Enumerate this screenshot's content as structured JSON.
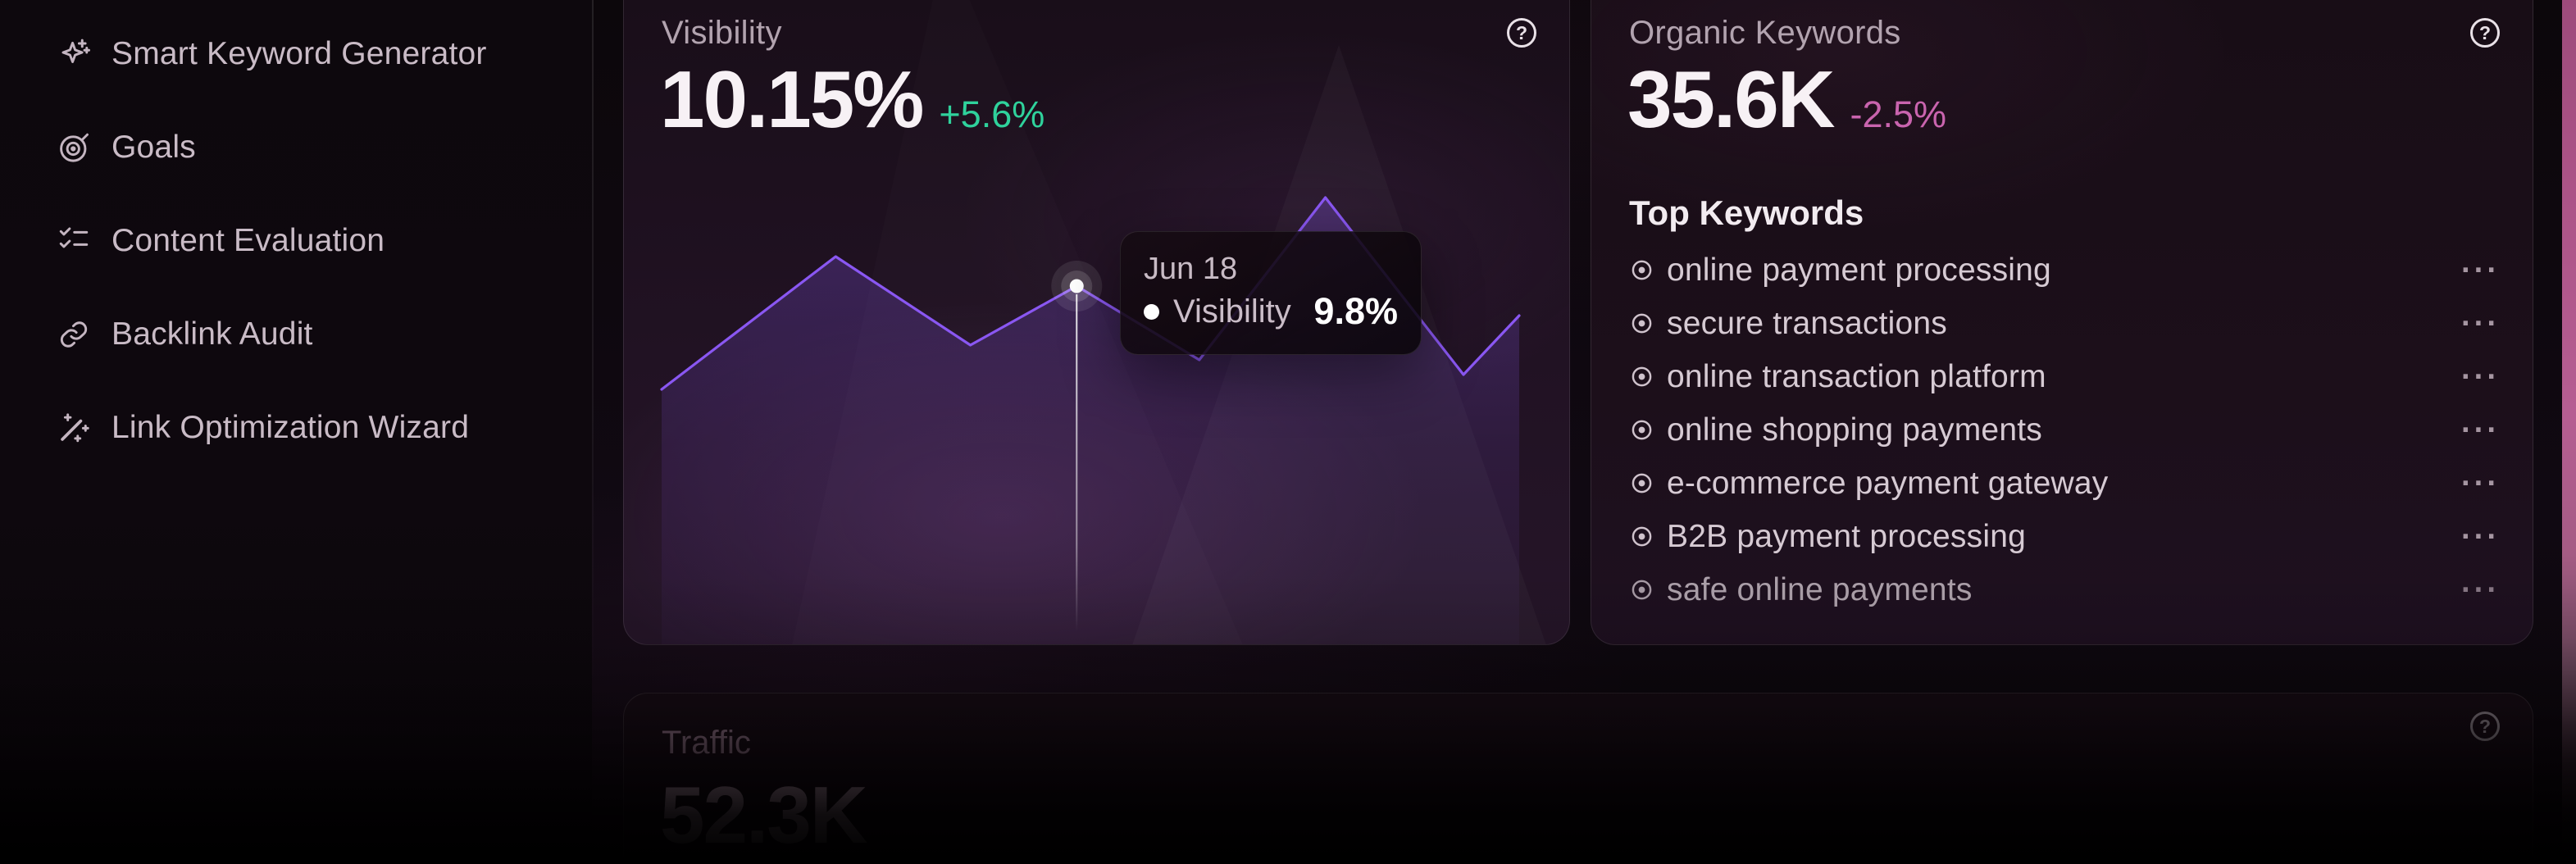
{
  "colors": {
    "accent_purple": "#8a57f2",
    "positive_green": "#2fd29c",
    "negative_pink": "#c964ae",
    "background": "#0c070b",
    "edge_strip_pink": "#b65e92"
  },
  "sidebar": {
    "items": [
      {
        "label": "Smart Keyword Generator",
        "icon": "sparkles-icon"
      },
      {
        "label": "Goals",
        "icon": "target-icon"
      },
      {
        "label": "Content Evaluation",
        "icon": "checklist-icon"
      },
      {
        "label": "Backlink Audit",
        "icon": "link-icon"
      },
      {
        "label": "Link Optimization Wizard",
        "icon": "wand-icon"
      }
    ]
  },
  "visibility_card": {
    "title": "Visibility",
    "value": "10.15%",
    "delta": "+5.6%",
    "delta_direction": "up",
    "tooltip": {
      "date": "Jun 18",
      "series": "Visibility",
      "value": "9.8%"
    }
  },
  "organic_card": {
    "title": "Organic Keywords",
    "value": "35.6K",
    "delta": "-2.5%",
    "delta_direction": "down",
    "top_keywords_title": "Top Keywords",
    "keywords": [
      "online payment processing",
      "secure transactions",
      "online transaction platform",
      "online shopping payments",
      "e-commerce payment gateway",
      "B2B payment processing",
      "safe online payments"
    ]
  },
  "traffic_card": {
    "title": "Traffic",
    "value": "52.3K"
  },
  "misc": {
    "help_glyph": "?",
    "ellipsis_glyph": "···"
  },
  "chart_data": {
    "type": "line",
    "title": "Visibility",
    "series_name": "Visibility",
    "unit": "%",
    "x_axis": "time (daily, unlabeled; highlighted point is Jun 18)",
    "ylim": [
      9.2,
      10.45
    ],
    "grid": false,
    "legend_position": "none (hover tooltip only)",
    "points": [
      {
        "x": 0.0,
        "value": 9.45
      },
      {
        "x": 0.203,
        "value": 9.9
      },
      {
        "x": 0.36,
        "value": 9.6
      },
      {
        "x": 0.484,
        "value": 9.8,
        "label": "Jun 18",
        "highlighted": true
      },
      {
        "x": 0.627,
        "value": 9.55
      },
      {
        "x": 0.774,
        "value": 10.1
      },
      {
        "x": 0.935,
        "value": 9.5
      },
      {
        "x": 1.0,
        "value": 9.7
      }
    ],
    "highlight": {
      "date": "Jun 18",
      "value_label": "9.8%"
    }
  }
}
